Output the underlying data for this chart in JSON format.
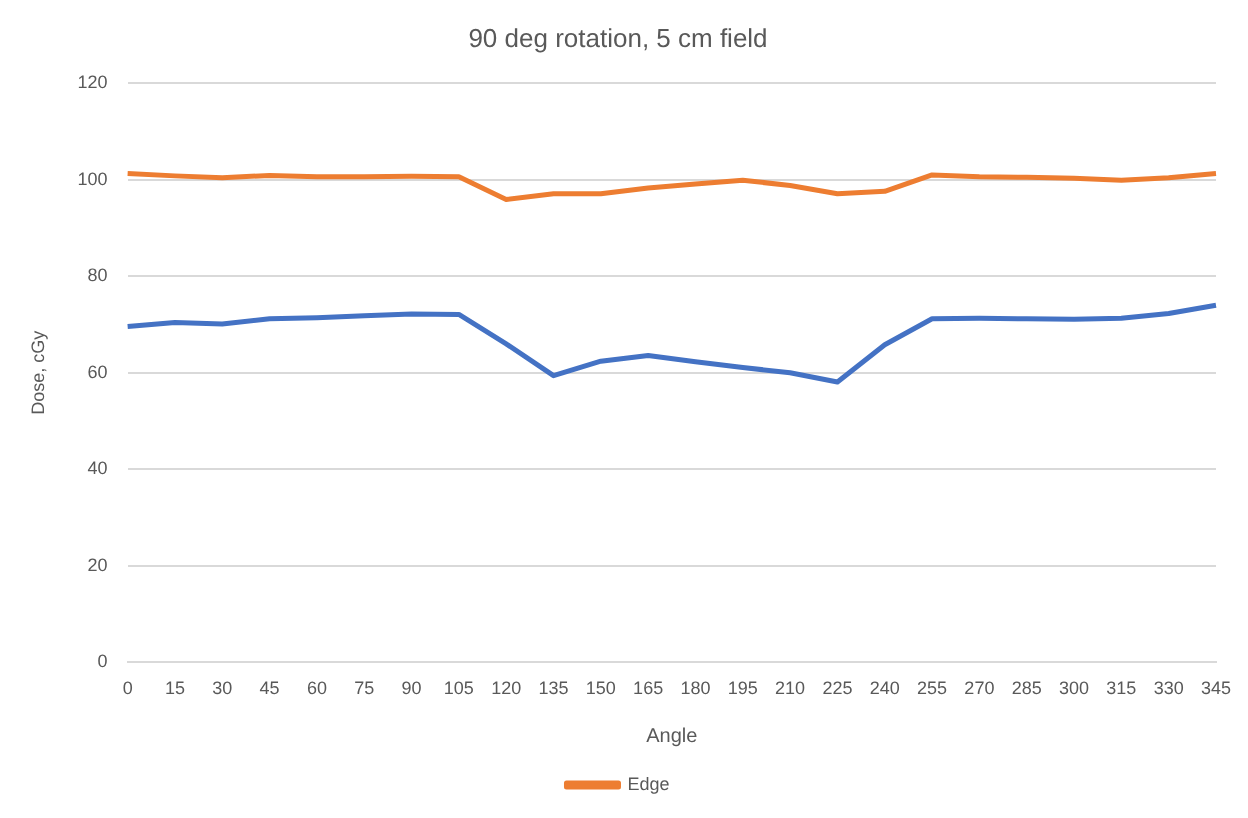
{
  "chart_data": {
    "type": "line",
    "title": "90 deg rotation, 5 cm field",
    "xlabel": "Angle",
    "ylabel": "Dose, cGy",
    "categories": [
      "0",
      "15",
      "30",
      "45",
      "60",
      "75",
      "90",
      "105",
      "120",
      "135",
      "150",
      "165",
      "180",
      "195",
      "210",
      "225",
      "240",
      "255",
      "270",
      "285",
      "300",
      "315",
      "330",
      "345"
    ],
    "series": [
      {
        "color": "#4472c4",
        "values": [
          69.6,
          70.4,
          70.1,
          71.2,
          71.4,
          71.8,
          72.2,
          72.1,
          66,
          59.4,
          62.4,
          63.6,
          62.3,
          61.1,
          60,
          58.1,
          65.8,
          71.2,
          71.3,
          71.2,
          71.1,
          71.3,
          72.3,
          74
        ]
      },
      {
        "name": "Edge",
        "color": "#ed7d31",
        "values": [
          101.3,
          100.8,
          100.4,
          100.9,
          100.6,
          100.6,
          100.7,
          100.6,
          95.9,
          97.1,
          97.1,
          98.3,
          99.1,
          99.9,
          98.8,
          97.1,
          97.6,
          101,
          100.6,
          100.5,
          100.3,
          99.9,
          100.4,
          101.3
        ]
      }
    ],
    "ylim": [
      0,
      120
    ],
    "yticks": [
      0,
      20,
      40,
      60,
      80,
      100,
      120
    ],
    "grid": "y",
    "legend": "bottom",
    "marker": "none",
    "line_style": "solid"
  }
}
